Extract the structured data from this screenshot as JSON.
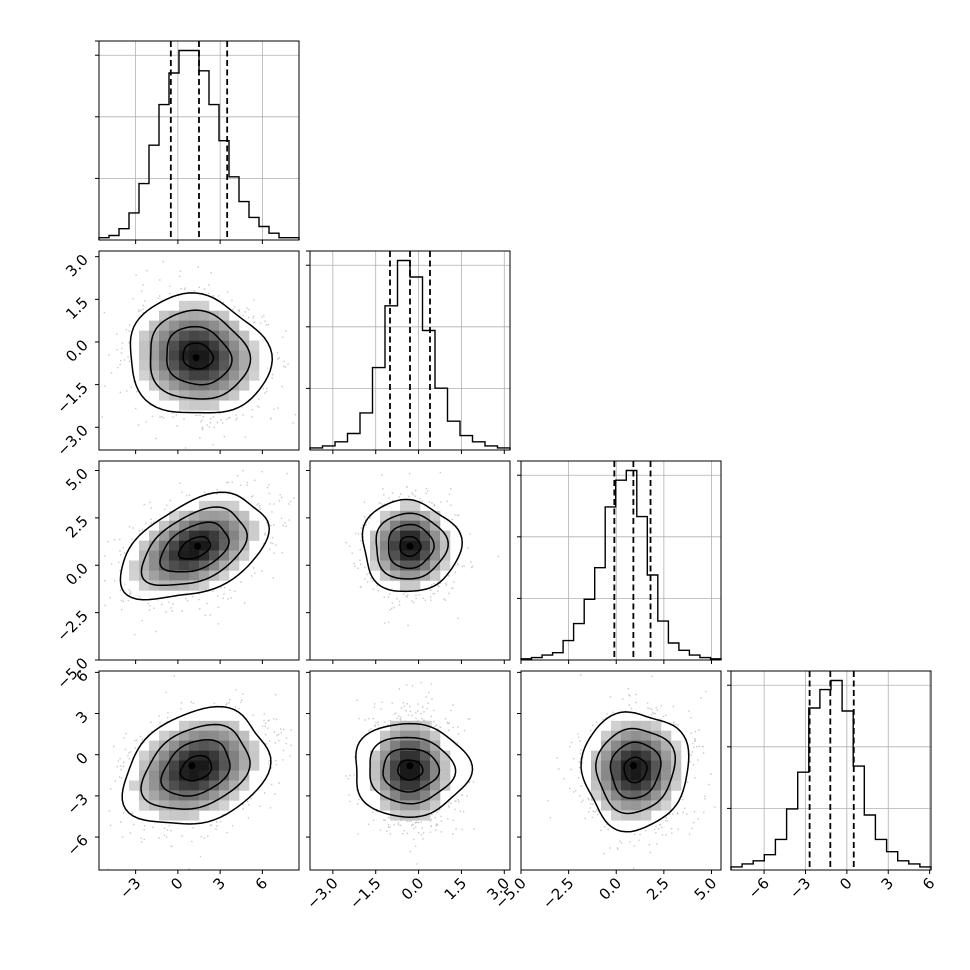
{
  "chart_data": {
    "type": "corner",
    "grid": true,
    "quantile_lines": "dashed",
    "colors": {
      "line": "#000000",
      "grid": "#b0b0b0",
      "scatter": "#9a9a9a"
    },
    "parameters": [
      {
        "range": [
          -5.6,
          8.6
        ],
        "ticks": [
          {
            "v": -3,
            "t": "−3"
          },
          {
            "v": 0,
            "t": "0"
          },
          {
            "v": 3,
            "t": "3"
          },
          {
            "v": 6,
            "t": "6"
          }
        ],
        "quantiles": [
          -0.5,
          1.5,
          3.5
        ],
        "histogram": [
          1,
          2,
          5,
          12,
          25,
          42,
          60,
          74,
          84,
          84,
          75,
          60,
          44,
          28,
          17,
          10,
          6,
          3,
          1,
          1
        ]
      },
      {
        "range": [
          -3.8,
          3.2
        ],
        "ticks": [
          {
            "v": -3.0,
            "t": "−3.0"
          },
          {
            "v": -1.5,
            "t": "−1.5"
          },
          {
            "v": 0.0,
            "t": "0.0"
          },
          {
            "v": 1.5,
            "t": "1.5"
          },
          {
            "v": 3.0,
            "t": "3.0"
          }
        ],
        "quantiles": [
          -1.0,
          -0.3,
          0.4
        ],
        "histogram": [
          1,
          2,
          4,
          8,
          18,
          40,
          70,
          92,
          84,
          58,
          30,
          14,
          7,
          4,
          2,
          1
        ]
      },
      {
        "range": [
          -5.0,
          5.5
        ],
        "ticks": [
          {
            "v": -5.0,
            "t": "−5.0"
          },
          {
            "v": -2.5,
            "t": "−2.5"
          },
          {
            "v": 0.0,
            "t": "0.0"
          },
          {
            "v": 2.5,
            "t": "2.5"
          },
          {
            "v": 5.0,
            "t": "5.0"
          }
        ],
        "quantiles": [
          -0.1,
          0.9,
          1.8
        ],
        "histogram": [
          0.5,
          1,
          2,
          3,
          8,
          15,
          25,
          38,
          63,
          74,
          78,
          59,
          35,
          16,
          7,
          4,
          2,
          1,
          0.5
        ]
      },
      {
        "range": [
          -8.4,
          6.1
        ],
        "ticks": [
          {
            "v": -6,
            "t": "−6"
          },
          {
            "v": -3,
            "t": "−3"
          },
          {
            "v": 0,
            "t": "0"
          },
          {
            "v": 3,
            "t": "3"
          },
          {
            "v": 6,
            "t": "6"
          }
        ],
        "quantiles": [
          -2.7,
          -1.2,
          0.5
        ],
        "histogram": [
          1,
          2,
          3,
          5,
          10,
          20,
          32,
          53,
          59,
          62,
          52,
          34,
          18,
          10,
          6,
          3,
          2,
          1
        ]
      }
    ],
    "pairs": [
      {
        "row": 1,
        "col": 0,
        "center": [
          1.4,
          -0.5
        ],
        "sigma": [
          2.3,
          1.0
        ],
        "rho": -0.08,
        "peak": [
          1.3,
          -0.55
        ]
      },
      {
        "row": 2,
        "col": 0,
        "center": [
          1.2,
          0.9
        ],
        "sigma": [
          2.4,
          1.3
        ],
        "rho": 0.42,
        "peak": [
          1.4,
          1.0
        ]
      },
      {
        "row": 2,
        "col": 1,
        "center": [
          -0.3,
          1.0
        ],
        "sigma": [
          0.75,
          1.2
        ],
        "rho": 0.0,
        "peak": [
          -0.3,
          1.0
        ]
      },
      {
        "row": 3,
        "col": 0,
        "center": [
          1.3,
          -1.0
        ],
        "sigma": [
          2.4,
          2.0
        ],
        "rho": 0.28,
        "peak": [
          1.0,
          -0.8
        ]
      },
      {
        "row": 3,
        "col": 1,
        "center": [
          -0.3,
          -1.1
        ],
        "sigma": [
          0.75,
          2.0
        ],
        "rho": 0.0,
        "peak": [
          -0.3,
          -0.8
        ]
      },
      {
        "row": 3,
        "col": 2,
        "center": [
          1.0,
          -1.1
        ],
        "sigma": [
          1.3,
          2.0
        ],
        "rho": 0.05,
        "peak": [
          0.9,
          -0.8
        ]
      }
    ]
  }
}
